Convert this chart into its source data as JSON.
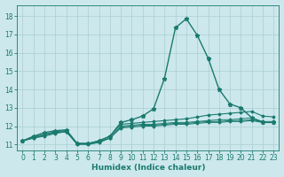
{
  "title": "",
  "xlabel": "Humidex (Indice chaleur)",
  "ylabel": "",
  "bg_color": "#cce8ec",
  "grid_color": "#aacdd2",
  "line_color": "#1a7a6e",
  "xlim": [
    -0.5,
    23.5
  ],
  "ylim": [
    10.7,
    18.6
  ],
  "xticks": [
    0,
    1,
    2,
    3,
    4,
    5,
    6,
    7,
    8,
    9,
    10,
    11,
    12,
    13,
    14,
    15,
    16,
    17,
    18,
    19,
    20,
    21,
    22,
    23
  ],
  "yticks": [
    11,
    12,
    13,
    14,
    15,
    16,
    17,
    18
  ],
  "series": [
    [
      11.2,
      11.35,
      11.45,
      11.6,
      11.7,
      11.05,
      11.05,
      11.15,
      11.35,
      11.9,
      11.95,
      12.0,
      12.0,
      12.05,
      12.1,
      12.1,
      12.15,
      12.2,
      12.2,
      12.25,
      12.25,
      12.3,
      12.2,
      12.2
    ],
    [
      11.2,
      11.35,
      11.5,
      11.65,
      11.7,
      11.05,
      11.05,
      11.15,
      11.35,
      11.95,
      12.0,
      12.05,
      12.05,
      12.1,
      12.15,
      12.15,
      12.2,
      12.25,
      12.25,
      12.3,
      12.3,
      12.35,
      12.2,
      12.2
    ],
    [
      11.2,
      11.4,
      11.55,
      11.65,
      11.7,
      11.0,
      11.0,
      11.1,
      11.35,
      12.0,
      12.05,
      12.1,
      12.1,
      12.15,
      12.2,
      12.2,
      12.25,
      12.3,
      12.35,
      12.35,
      12.4,
      12.45,
      12.25,
      12.25
    ],
    [
      11.2,
      11.4,
      11.55,
      11.7,
      11.75,
      11.05,
      11.05,
      11.2,
      11.45,
      12.1,
      12.15,
      12.2,
      12.25,
      12.3,
      12.35,
      12.4,
      12.5,
      12.6,
      12.65,
      12.7,
      12.75,
      12.8,
      12.55,
      12.5
    ],
    [
      11.2,
      11.45,
      11.65,
      11.75,
      11.8,
      11.05,
      11.05,
      11.2,
      11.45,
      12.2,
      12.35,
      12.55,
      12.95,
      14.6,
      17.35,
      17.85,
      16.95,
      15.7,
      14.0,
      13.2,
      13.0,
      12.45,
      12.2,
      12.2
    ]
  ]
}
